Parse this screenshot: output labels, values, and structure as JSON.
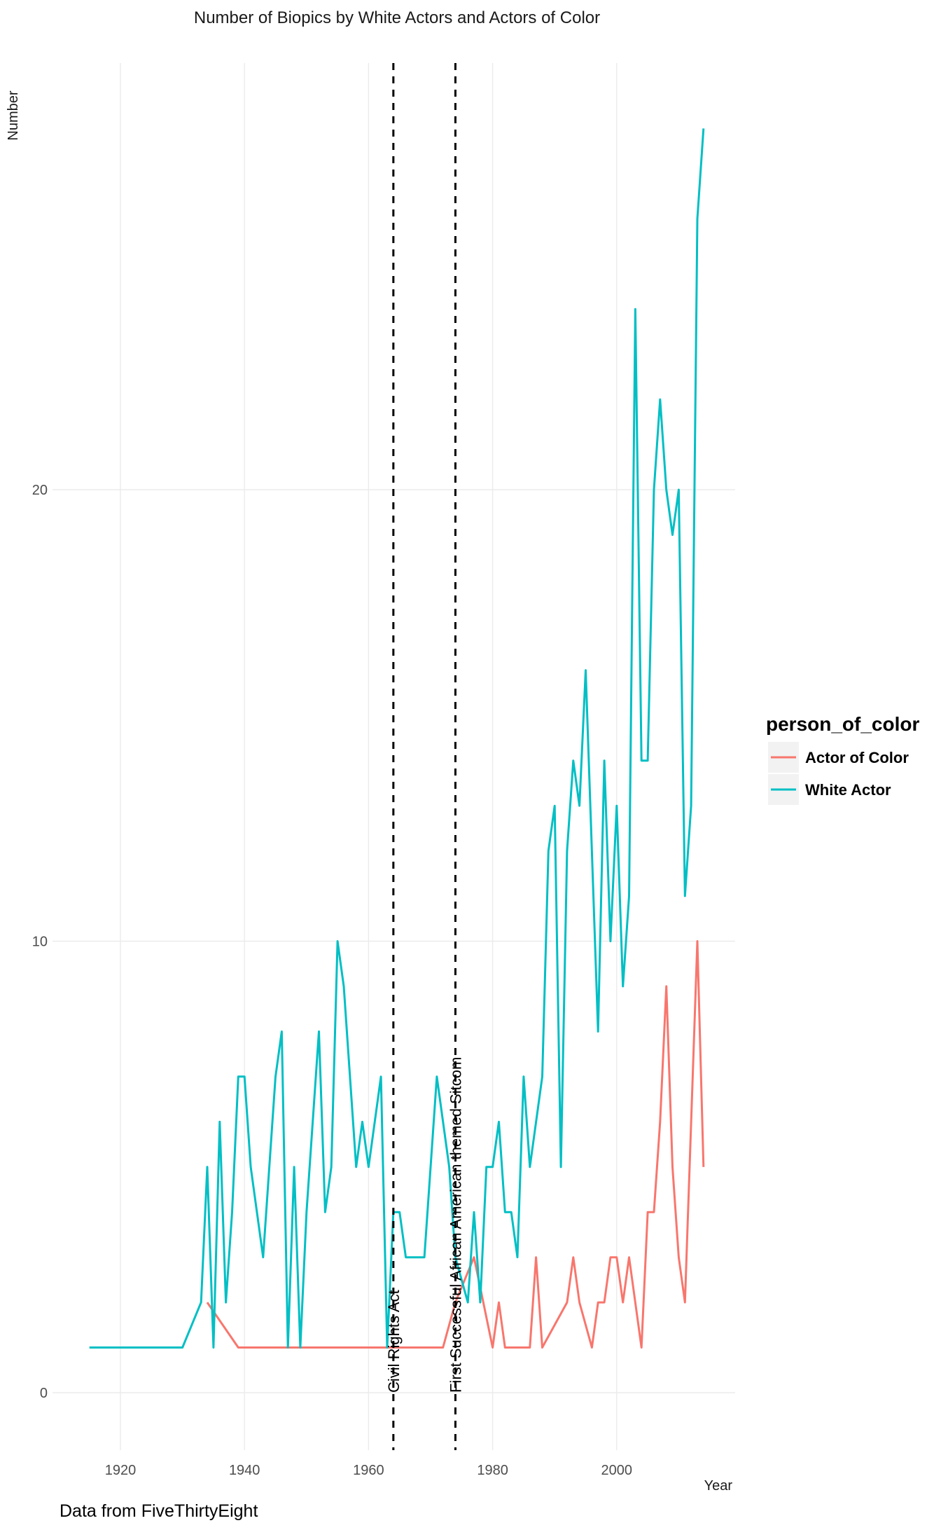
{
  "chart_data": {
    "type": "line",
    "title": "Number of Biopics by White Actors and Actors of Color",
    "xlabel": "Year",
    "ylabel": "Number",
    "caption": "Data from FiveThirtyEight",
    "xlim": [
      1910,
      2030
    ],
    "ylim": [
      -1.5,
      30
    ],
    "x_ticks": [
      1920,
      1940,
      1960,
      1980,
      2000
    ],
    "y_ticks": [
      0,
      10,
      20
    ],
    "grid": true,
    "legend": {
      "title": "person_of_color",
      "position": "right"
    },
    "annotations": [
      {
        "x": 1964,
        "label": "Civil Rights Act"
      },
      {
        "x": 1974,
        "label": "First Successful African American themed Sitcom"
      }
    ],
    "series": [
      {
        "name": "Actor of Color",
        "color": "#F8766D",
        "points": [
          [
            1934,
            2
          ],
          [
            1939,
            1
          ],
          [
            1944,
            1
          ],
          [
            1949,
            1
          ],
          [
            1954,
            1
          ],
          [
            1959,
            1
          ],
          [
            1964,
            1
          ],
          [
            1969,
            1
          ],
          [
            1972,
            1
          ],
          [
            1974,
            2
          ],
          [
            1977,
            3
          ],
          [
            1980,
            1
          ],
          [
            1981,
            2
          ],
          [
            1982,
            1
          ],
          [
            1984,
            1
          ],
          [
            1986,
            1
          ],
          [
            1987,
            3
          ],
          [
            1988,
            1
          ],
          [
            1992,
            2
          ],
          [
            1993,
            3
          ],
          [
            1994,
            2
          ],
          [
            1996,
            1
          ],
          [
            1997,
            2
          ],
          [
            1998,
            2
          ],
          [
            1999,
            3
          ],
          [
            2000,
            3
          ],
          [
            2001,
            2
          ],
          [
            2002,
            3
          ],
          [
            2004,
            1
          ],
          [
            2005,
            4
          ],
          [
            2006,
            4
          ],
          [
            2007,
            6
          ],
          [
            2008,
            9
          ],
          [
            2009,
            5
          ],
          [
            2010,
            3
          ],
          [
            2011,
            2
          ],
          [
            2013,
            10
          ],
          [
            2014,
            5
          ]
        ]
      },
      {
        "name": "White Actor",
        "color": "#00BFC4",
        "points": [
          [
            1915,
            1
          ],
          [
            1930,
            1
          ],
          [
            1933,
            2
          ],
          [
            1934,
            5
          ],
          [
            1935,
            1
          ],
          [
            1936,
            6
          ],
          [
            1937,
            2
          ],
          [
            1938,
            4
          ],
          [
            1939,
            7
          ],
          [
            1940,
            7
          ],
          [
            1941,
            5
          ],
          [
            1943,
            3
          ],
          [
            1945,
            7
          ],
          [
            1946,
            8
          ],
          [
            1947,
            1
          ],
          [
            1948,
            5
          ],
          [
            1949,
            1
          ],
          [
            1950,
            4
          ],
          [
            1952,
            8
          ],
          [
            1953,
            4
          ],
          [
            1954,
            5
          ],
          [
            1955,
            10
          ],
          [
            1956,
            9
          ],
          [
            1958,
            5
          ],
          [
            1959,
            6
          ],
          [
            1960,
            5
          ],
          [
            1962,
            7
          ],
          [
            1963,
            1
          ],
          [
            1964,
            4
          ],
          [
            1965,
            4
          ],
          [
            1966,
            3
          ],
          [
            1969,
            3
          ],
          [
            1971,
            7
          ],
          [
            1973,
            5
          ],
          [
            1974,
            3
          ],
          [
            1976,
            2
          ],
          [
            1977,
            4
          ],
          [
            1978,
            2
          ],
          [
            1979,
            5
          ],
          [
            1980,
            5
          ],
          [
            1981,
            6
          ],
          [
            1982,
            4
          ],
          [
            1983,
            4
          ],
          [
            1984,
            3
          ],
          [
            1985,
            7
          ],
          [
            1986,
            5
          ],
          [
            1988,
            7
          ],
          [
            1989,
            12
          ],
          [
            1990,
            13
          ],
          [
            1991,
            5
          ],
          [
            1992,
            12
          ],
          [
            1993,
            14
          ],
          [
            1994,
            13
          ],
          [
            1995,
            16
          ],
          [
            1997,
            8
          ],
          [
            1998,
            14
          ],
          [
            1999,
            10
          ],
          [
            2000,
            13
          ],
          [
            2001,
            9
          ],
          [
            2002,
            11
          ],
          [
            2003,
            24
          ],
          [
            2004,
            14
          ],
          [
            2005,
            14
          ],
          [
            2006,
            20
          ],
          [
            2007,
            22
          ],
          [
            2008,
            20
          ],
          [
            2009,
            19
          ],
          [
            2010,
            20
          ],
          [
            2011,
            11
          ],
          [
            2012,
            13
          ],
          [
            2013,
            26
          ],
          [
            2014,
            28
          ]
        ]
      }
    ]
  }
}
